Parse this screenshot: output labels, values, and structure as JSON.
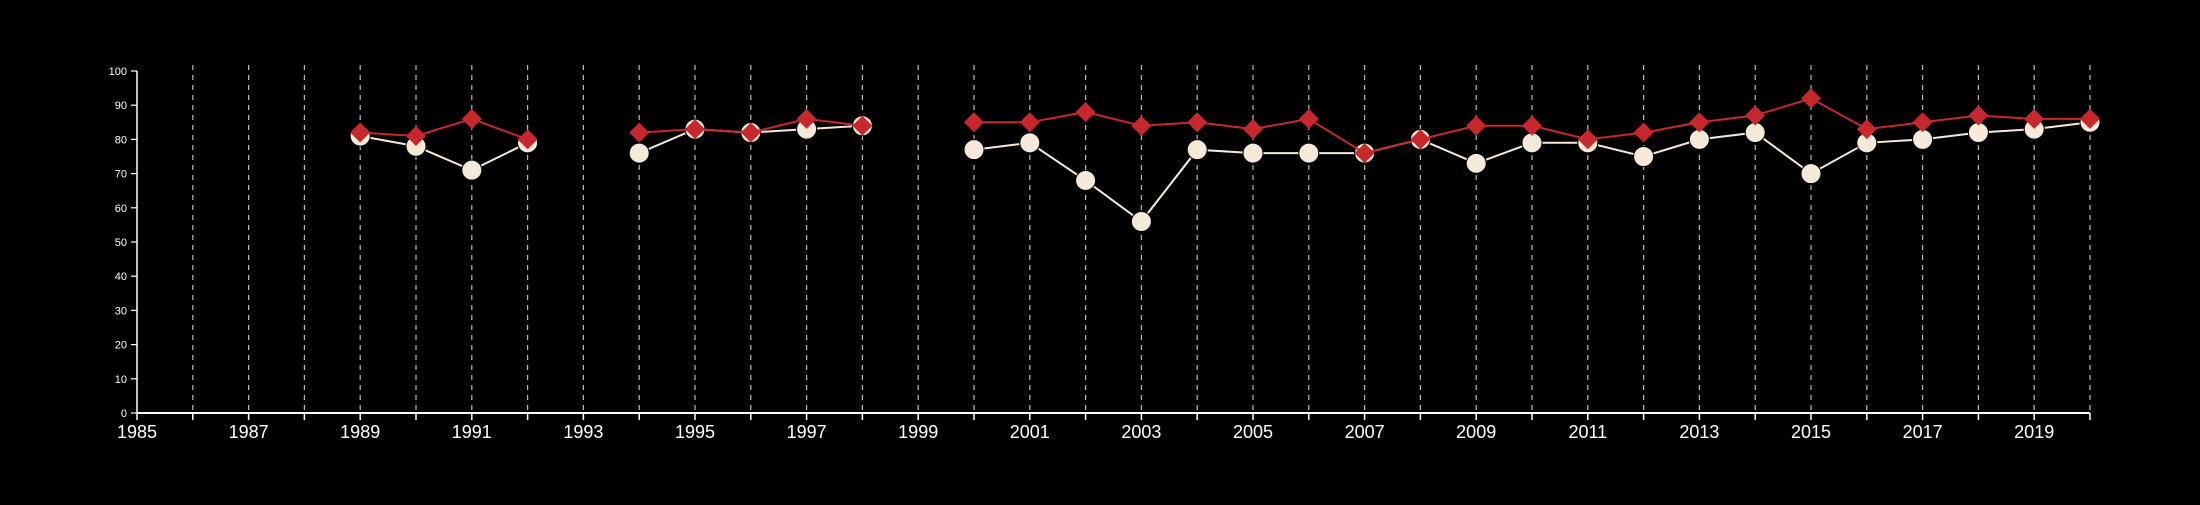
{
  "chart_data": {
    "type": "line",
    "title": "",
    "xlabel": "",
    "ylabel": "",
    "xlim": [
      1985,
      2020
    ],
    "ylim": [
      0,
      100
    ],
    "x_tick_labels": [
      "1985",
      "1987",
      "1989",
      "1991",
      "1993",
      "1995",
      "1997",
      "1999",
      "2001",
      "2003",
      "2005",
      "2007",
      "2009",
      "2011",
      "2013",
      "2015",
      "2017",
      "2019"
    ],
    "y_tick_labels": [
      "0",
      "10",
      "20",
      "30",
      "40",
      "50",
      "60",
      "70",
      "80",
      "90",
      "100"
    ],
    "grid": "vertical dashed lines at each year",
    "colors": {
      "background": "#000000",
      "axes": "#ffffff",
      "grid": "#bbbbbb",
      "series_red": "#c7282d",
      "series_cream": "#f5ead7"
    },
    "series": [
      {
        "marker": "diamond",
        "color": "#c7282d",
        "points": [
          [
            1989,
            82
          ],
          [
            1990,
            81
          ],
          [
            1991,
            86
          ],
          [
            1992,
            80
          ],
          [
            1994,
            82
          ],
          [
            1995,
            83
          ],
          [
            1996,
            82
          ],
          [
            1997,
            86
          ],
          [
            1998,
            84
          ],
          [
            2000,
            85
          ],
          [
            2001,
            85
          ],
          [
            2002,
            88
          ],
          [
            2003,
            84
          ],
          [
            2004,
            85
          ],
          [
            2005,
            83
          ],
          [
            2006,
            86
          ],
          [
            2007,
            76
          ],
          [
            2008,
            80
          ],
          [
            2009,
            84
          ],
          [
            2010,
            84
          ],
          [
            2011,
            80
          ],
          [
            2012,
            82
          ],
          [
            2013,
            85
          ],
          [
            2014,
            87
          ],
          [
            2015,
            92
          ],
          [
            2016,
            83
          ],
          [
            2017,
            85
          ],
          [
            2018,
            87
          ],
          [
            2019,
            86
          ],
          [
            2020,
            86
          ]
        ]
      },
      {
        "marker": "circle",
        "color": "#f5ead7",
        "points": [
          [
            1989,
            81
          ],
          [
            1990,
            78
          ],
          [
            1991,
            71
          ],
          [
            1992,
            79
          ],
          [
            1994,
            76
          ],
          [
            1995,
            83
          ],
          [
            1996,
            82
          ],
          [
            1997,
            83
          ],
          [
            1998,
            84
          ],
          [
            2000,
            77
          ],
          [
            2001,
            79
          ],
          [
            2002,
            68
          ],
          [
            2003,
            56
          ],
          [
            2004,
            77
          ],
          [
            2005,
            76
          ],
          [
            2006,
            76
          ],
          [
            2007,
            76
          ],
          [
            2008,
            80
          ],
          [
            2009,
            73
          ],
          [
            2010,
            79
          ],
          [
            2011,
            79
          ],
          [
            2012,
            75
          ],
          [
            2013,
            80
          ],
          [
            2014,
            82
          ],
          [
            2015,
            70
          ],
          [
            2016,
            79
          ],
          [
            2017,
            80
          ],
          [
            2018,
            82
          ],
          [
            2019,
            83
          ],
          [
            2020,
            85
          ]
        ]
      }
    ]
  }
}
